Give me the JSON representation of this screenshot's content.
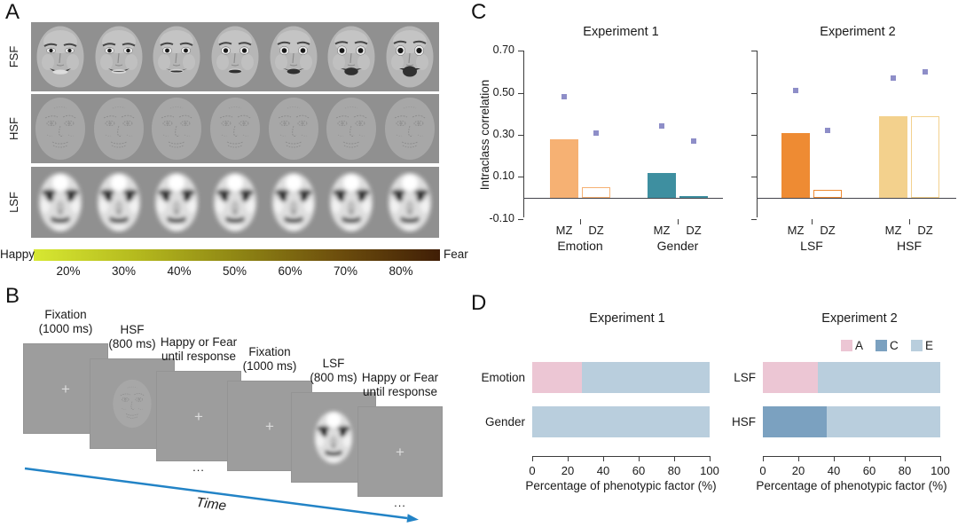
{
  "panel_a": {
    "letter": "A",
    "rows": [
      {
        "label": "FSF",
        "type": "fsf"
      },
      {
        "label": "HSF",
        "type": "hsf"
      },
      {
        "label": "LSF",
        "type": "lsf"
      }
    ],
    "faces_per_row": 7,
    "gradient": {
      "left_label": "Happy",
      "right_label": "Fear",
      "stops": [
        "#d7e832",
        "#b5ba1e",
        "#8f8614",
        "#6d4e0d",
        "#401e06"
      ],
      "percent_labels": [
        "20%",
        "30%",
        "40%",
        "50%",
        "60%",
        "70%",
        "80%"
      ]
    }
  },
  "panel_b": {
    "letter": "B",
    "fixation_cross": "+",
    "ellipsis": "...",
    "time_label": "Time",
    "arrow_color": "#2283c6",
    "screens": [
      {
        "label_lines": [
          "Fixation",
          "(1000 ms)"
        ],
        "content": "cross"
      },
      {
        "label_lines": [
          "HSF",
          "(800 ms)"
        ],
        "content": "hsf-face"
      },
      {
        "label_lines": [
          "Happy or Fear",
          "until response"
        ],
        "content": "cross",
        "ellipsis": true
      },
      {
        "label_lines": [
          "Fixation",
          "(1000 ms)"
        ],
        "content": "cross"
      },
      {
        "label_lines": [
          "LSF",
          "(800 ms)"
        ],
        "content": "lsf-face"
      },
      {
        "label_lines": [
          "Happy or Fear",
          "until response"
        ],
        "content": "cross",
        "ellipsis": true
      }
    ]
  },
  "panel_c": {
    "letter": "C"
  },
  "panel_d": {
    "letter": "D"
  },
  "chart_data": [
    {
      "id": "icc-exp1",
      "type": "bar",
      "title": "Experiment 1",
      "ylabel": "Intraclass correlation",
      "ylim": [
        -0.1,
        0.7
      ],
      "yticks": [
        {
          "value": 0.7,
          "label": "0.70"
        },
        {
          "value": 0.5,
          "label": "0.50"
        },
        {
          "value": 0.3,
          "label": "0.30"
        },
        {
          "value": 0.1,
          "label": "0.10"
        },
        {
          "value": -0.1,
          "label": "-0.10"
        }
      ],
      "point_marker": "square",
      "point_color": "#8e8ec8",
      "groups": [
        {
          "label": "Emotion",
          "bars": [
            {
              "label": "MZ",
              "value": 0.28,
              "fill": "#f6b173",
              "outline": false,
              "point": 0.48
            },
            {
              "label": "DZ",
              "value": 0.05,
              "fill": "#ffffff",
              "stroke": "#f6b173",
              "outline": true,
              "point": 0.31
            }
          ]
        },
        {
          "label": "Gender",
          "bars": [
            {
              "label": "MZ",
              "value": 0.12,
              "fill": "#3e8fa0",
              "outline": false,
              "point": 0.34
            },
            {
              "label": "DZ",
              "value": 0.01,
              "fill": "#ffffff",
              "stroke": "#3e8fa0",
              "outline": true,
              "point": 0.27
            }
          ]
        }
      ]
    },
    {
      "id": "icc-exp2",
      "type": "bar",
      "title": "Experiment 2",
      "ylim": [
        -0.1,
        0.7
      ],
      "yticks": [
        0.7,
        0.5,
        0.3,
        0.1,
        -0.1
      ],
      "point_marker": "square",
      "point_color": "#8e8ec8",
      "groups": [
        {
          "label": "LSF",
          "bars": [
            {
              "label": "MZ",
              "value": 0.31,
              "fill": "#ee8b33",
              "outline": false,
              "point": 0.51
            },
            {
              "label": "DZ",
              "value": 0.04,
              "fill": "#ffffff",
              "stroke": "#ee8b33",
              "outline": true,
              "point": 0.32
            }
          ]
        },
        {
          "label": "HSF",
          "bars": [
            {
              "label": "MZ",
              "value": 0.39,
              "fill": "#f3d18d",
              "outline": false,
              "point": 0.57
            },
            {
              "label": "DZ",
              "value": 0.39,
              "fill": "#ffffff",
              "stroke": "#f3d18d",
              "outline": true,
              "point": 0.6
            }
          ]
        }
      ]
    },
    {
      "id": "ace-exp1",
      "type": "stacked-bar-horizontal",
      "title": "Experiment 1",
      "xlabel": "Percentage of phenotypic factor (%)",
      "xlim": [
        0,
        100
      ],
      "xticks": [
        0,
        20,
        40,
        60,
        80,
        100
      ],
      "series_colors": {
        "A": "#ecc6d4",
        "C": "#7ba1c0",
        "E": "#b9cedd"
      },
      "rows": [
        {
          "label": "Emotion",
          "segments": [
            {
              "name": "A",
              "value": 28
            },
            {
              "name": "E",
              "value": 72
            }
          ]
        },
        {
          "label": "Gender",
          "segments": [
            {
              "name": "E",
              "value": 100
            }
          ]
        }
      ]
    },
    {
      "id": "ace-exp2",
      "type": "stacked-bar-horizontal",
      "title": "Experiment 2",
      "xlabel": "Percentage of phenotypic factor (%)",
      "xlim": [
        0,
        100
      ],
      "xticks": [
        0,
        20,
        40,
        60,
        80,
        100
      ],
      "series_colors": {
        "A": "#ecc6d4",
        "C": "#7ba1c0",
        "E": "#b9cedd"
      },
      "legend": [
        "A",
        "C",
        "E"
      ],
      "rows": [
        {
          "label": "LSF",
          "segments": [
            {
              "name": "A",
              "value": 31
            },
            {
              "name": "E",
              "value": 69
            }
          ]
        },
        {
          "label": "HSF",
          "segments": [
            {
              "name": "C",
              "value": 36
            },
            {
              "name": "E",
              "value": 64
            }
          ]
        }
      ]
    }
  ]
}
